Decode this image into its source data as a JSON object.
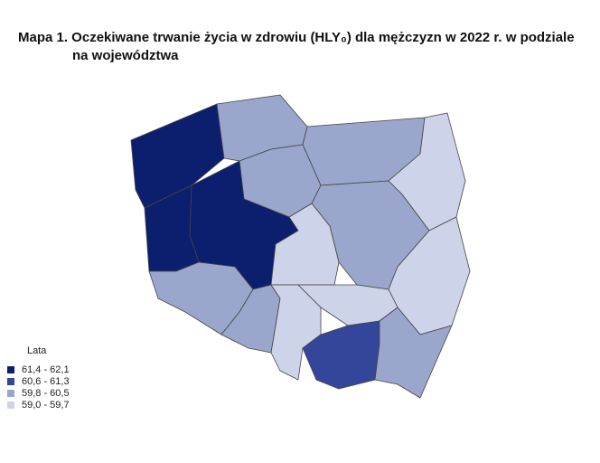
{
  "title": "Mapa 1. Oczekiwane trwanie życia w zdrowiu (HLY₀) dla mężczyzn w 2022 r. w podziale na województwa",
  "legend": {
    "title": "Lata",
    "items": [
      {
        "label": "61,4 - 62,1",
        "color": "#0c1f6e"
      },
      {
        "label": "60,6 - 61,3",
        "color": "#34469a"
      },
      {
        "label": "59,8 - 60,5",
        "color": "#9aa6cc"
      },
      {
        "label": "59,0 - 59,7",
        "color": "#cdd3e8"
      }
    ]
  }
}
